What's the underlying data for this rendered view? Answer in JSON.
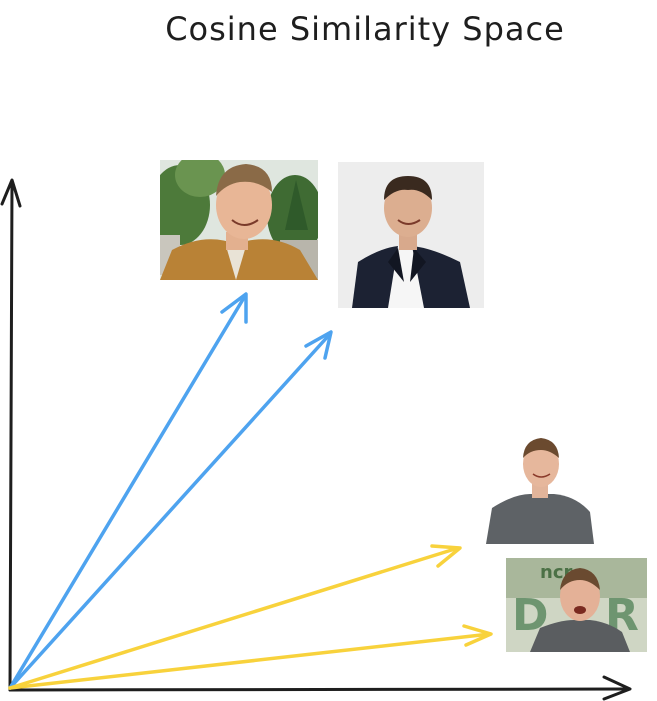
{
  "title": "Cosine Similarity Space",
  "colors": {
    "axis": "#1e1e1e",
    "group_a": "#4ea3ef",
    "group_b": "#f8d23c",
    "photo_bg": "#f2f2f2"
  },
  "photos": [
    {
      "id": "young-elon",
      "group": "a",
      "description": "young man, brown jacket, trees background",
      "icon": "young-man-photo"
    },
    {
      "id": "older-elon",
      "group": "a",
      "description": "man in dark suit, white shirt",
      "icon": "man-suit-photo"
    },
    {
      "id": "zuck-gray-tshirt",
      "group": "b",
      "description": "man in gray t-shirt",
      "icon": "man-tshirt-photo"
    },
    {
      "id": "zuck-stage",
      "group": "b",
      "description": "man on stage, green sign background",
      "icon": "man-stage-photo"
    }
  ]
}
